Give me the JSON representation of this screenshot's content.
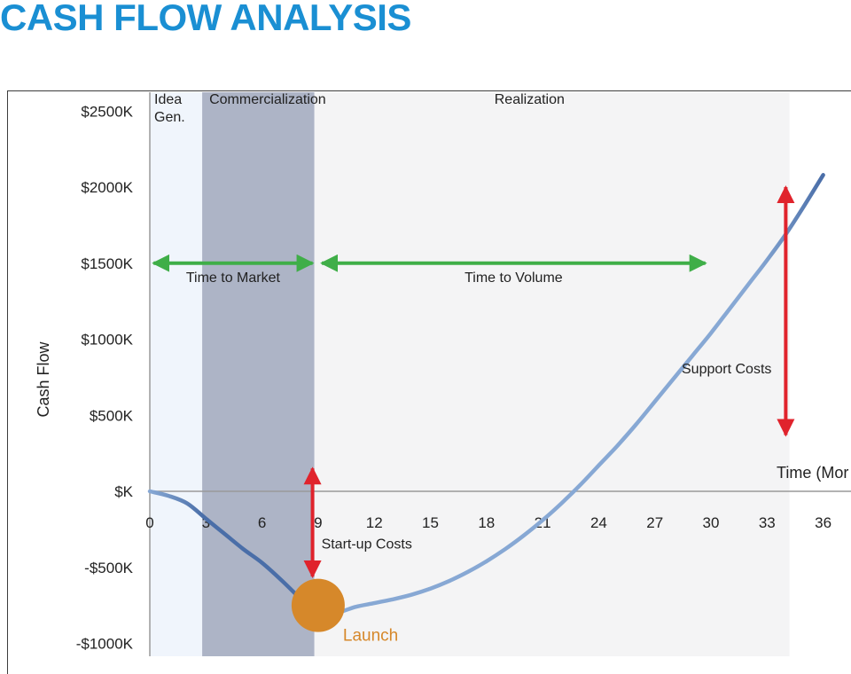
{
  "page": {
    "title": "CASH FLOW ANALYSIS"
  },
  "colors": {
    "title": "#1a8fd3",
    "idea_band": "#f0f5fc",
    "commercialization_band": "#adb4c6",
    "realization_band": "#f4f4f5",
    "curve_light": "#87a8d4",
    "curve_dark": "#4a6ea8",
    "green_arrow": "#3fae48",
    "red_arrow": "#e0232c",
    "launch": "#d6882a",
    "axis": "#9a9a9a",
    "text": "#222222"
  },
  "chart_data": {
    "type": "line",
    "title": "",
    "ylabel": "Cash Flow",
    "xlabel": "Time (Mor",
    "xlim": [
      0,
      36
    ],
    "ylim": [
      -1000,
      2500
    ],
    "xticks": [
      0,
      3,
      6,
      9,
      12,
      15,
      18,
      21,
      24,
      27,
      30,
      33,
      36
    ],
    "yticks": [
      {
        "value": 2500,
        "label": "$2500K"
      },
      {
        "value": 2000,
        "label": "$2000K"
      },
      {
        "value": 1500,
        "label": "$1500K"
      },
      {
        "value": 1000,
        "label": "$1000K"
      },
      {
        "value": 500,
        "label": "$500K"
      },
      {
        "value": 0,
        "label": "$K"
      },
      {
        "value": -500,
        "label": "-$500K"
      },
      {
        "value": -1000,
        "label": "-$1000K"
      }
    ],
    "phases": [
      {
        "name": "Idea\nGen.",
        "start": 0,
        "end": 2.8
      },
      {
        "name": "Commercialization",
        "start": 2.8,
        "end": 8.8
      },
      {
        "name": "Realization",
        "start": 8.8,
        "end": 34.2
      }
    ],
    "series": [
      {
        "points": [
          [
            0,
            0
          ],
          [
            1,
            -30
          ],
          [
            2,
            -80
          ],
          [
            3,
            -180
          ],
          [
            4,
            -280
          ],
          [
            5,
            -380
          ],
          [
            6,
            -470
          ],
          [
            7,
            -580
          ],
          [
            8,
            -700
          ],
          [
            9,
            -820
          ],
          [
            10,
            -800
          ],
          [
            11,
            -760
          ],
          [
            12,
            -735
          ],
          [
            13,
            -710
          ],
          [
            14,
            -680
          ],
          [
            15,
            -640
          ],
          [
            16,
            -590
          ],
          [
            17,
            -530
          ],
          [
            18,
            -460
          ],
          [
            19,
            -380
          ],
          [
            20,
            -290
          ],
          [
            21,
            -190
          ],
          [
            22,
            -80
          ],
          [
            23,
            40
          ],
          [
            24,
            170
          ],
          [
            25,
            300
          ],
          [
            26,
            440
          ],
          [
            27,
            590
          ],
          [
            28,
            740
          ],
          [
            29,
            890
          ],
          [
            30,
            1040
          ],
          [
            31,
            1200
          ],
          [
            32,
            1360
          ],
          [
            33,
            1520
          ],
          [
            34,
            1690
          ],
          [
            35,
            1880
          ],
          [
            36,
            2080
          ]
        ]
      }
    ],
    "annotations": {
      "time_to_market": {
        "label": "Time to Market",
        "x1": 0.2,
        "x2": 8.7,
        "y": 1500
      },
      "time_to_volume": {
        "label": "Time to Volume",
        "x1": 9.2,
        "x2": 29.7,
        "y": 1500
      },
      "startup_costs": {
        "label": "Start-up Costs",
        "x": 8.7,
        "y1": 150,
        "y2": -560
      },
      "support_costs": {
        "label": "Support Costs",
        "x": 34.0,
        "y1": 2000,
        "y2": 370
      },
      "launch": {
        "label": "Launch",
        "x": 9.0,
        "y": -750
      }
    }
  }
}
